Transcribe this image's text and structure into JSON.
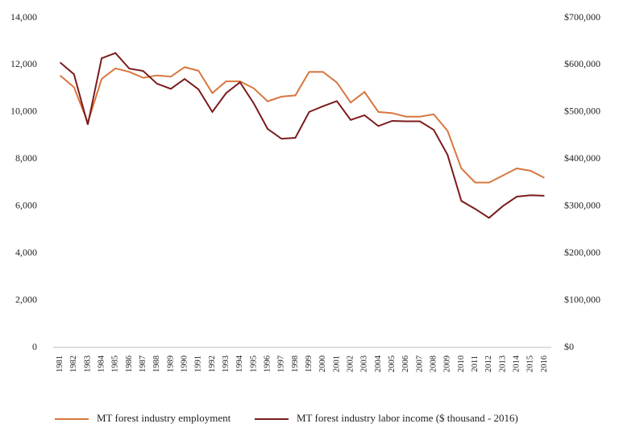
{
  "chart_data": {
    "type": "line",
    "categories": [
      "1981",
      "1982",
      "1983",
      "1984",
      "1985",
      "1986",
      "1987",
      "1988",
      "1989",
      "1990",
      "1991",
      "1992",
      "1993",
      "1994",
      "1995",
      "1996",
      "1997",
      "1998",
      "1999",
      "2000",
      "2001",
      "2002",
      "2003",
      "2004",
      "2005",
      "2006",
      "2007",
      "2008",
      "2009",
      "2010",
      "2011",
      "2012",
      "2013",
      "2014",
      "2015",
      "2016"
    ],
    "series": [
      {
        "name": "MT forest industry employment",
        "color": "#d8763e",
        "values": [
          11550,
          11050,
          9550,
          11400,
          11850,
          11700,
          11450,
          11550,
          11500,
          11900,
          11750,
          10800,
          11300,
          11300,
          11000,
          10450,
          10650,
          10700,
          11700,
          11700,
          11250,
          10400,
          10850,
          10000,
          9950,
          9800,
          9800,
          9900,
          9200,
          7600,
          7000,
          7000,
          7300,
          7600,
          7500,
          7200
        ]
      },
      {
        "name": "MT forest industry labor income ($ thousand - 2016)",
        "color": "#7b1c1c",
        "axis": "y2",
        "values": [
          605000,
          580000,
          473000,
          614000,
          625000,
          592000,
          587000,
          560000,
          549000,
          570000,
          548000,
          500000,
          540000,
          563000,
          518000,
          464000,
          443000,
          445000,
          500000,
          512000,
          523000,
          483000,
          493000,
          470000,
          481000,
          480000,
          480000,
          462000,
          409000,
          311000,
          294000,
          275000,
          300000,
          320000,
          323000,
          322000
        ]
      }
    ],
    "ylim": [
      0,
      14000
    ],
    "yticks": [
      0,
      {
        "value": 2000,
        "label": "2,000"
      },
      {
        "value": 4000,
        "label": "4,000"
      },
      {
        "value": 6000,
        "label": "6,000"
      },
      {
        "value": 8000,
        "label": "8,000"
      },
      {
        "value": 10000,
        "label": "10,000"
      },
      {
        "value": 12000,
        "label": "12,000"
      },
      {
        "value": 14000,
        "label": "14,000"
      }
    ],
    "y2lim": [
      0,
      700000
    ],
    "y2ticks": [
      {
        "value": 0,
        "label": "$0"
      },
      {
        "value": 100000,
        "label": "$100,000"
      },
      {
        "value": 200000,
        "label": "$200,000"
      },
      {
        "value": 300000,
        "label": "$300,000"
      },
      {
        "value": 400000,
        "label": "$400,000"
      },
      {
        "value": 500000,
        "label": "$500,000"
      },
      {
        "value": 600000,
        "label": "$600,000"
      },
      {
        "value": 700000,
        "label": "$700,000"
      }
    ],
    "legend": "bottom"
  }
}
